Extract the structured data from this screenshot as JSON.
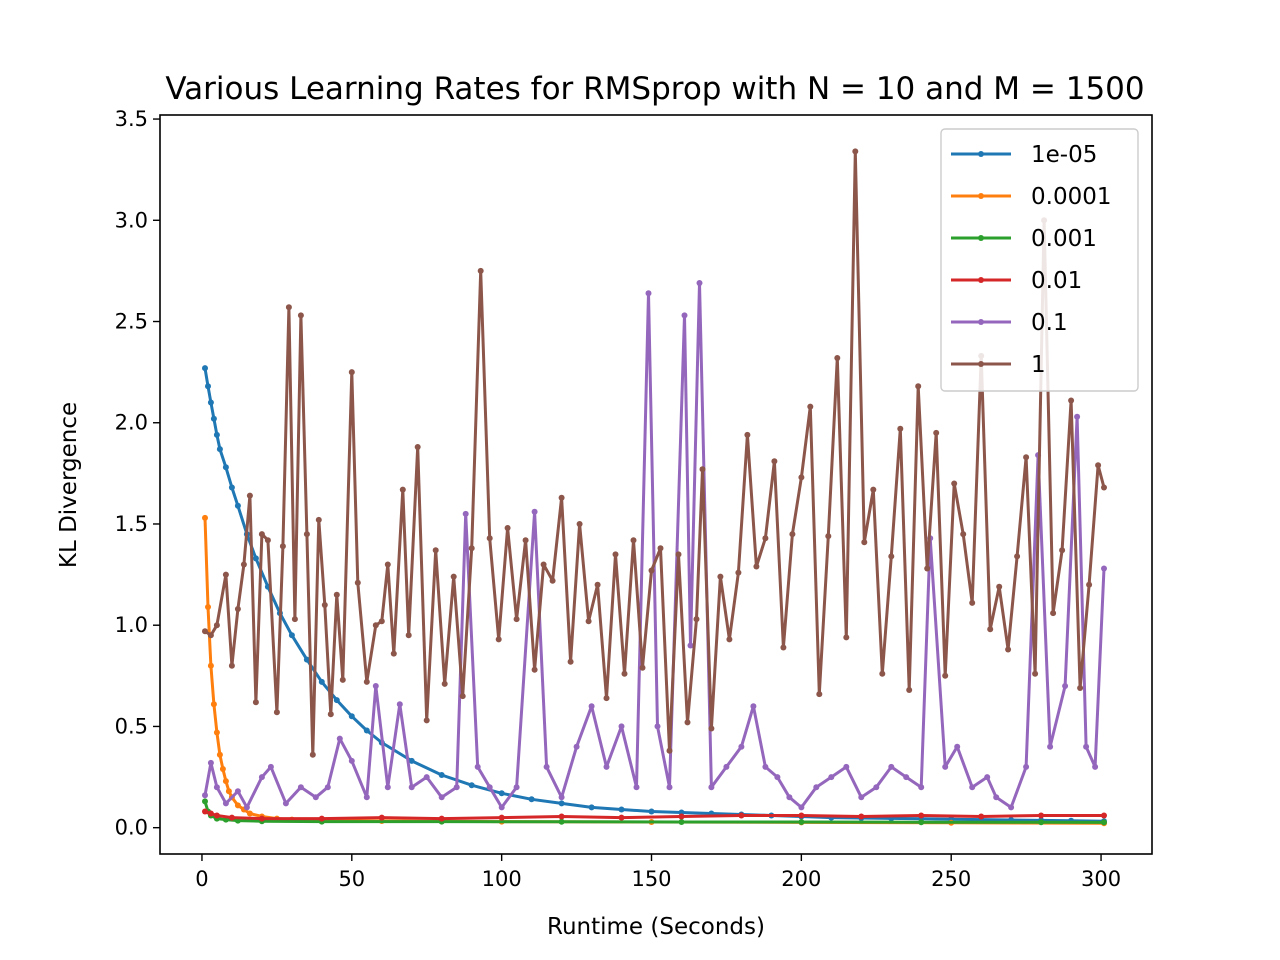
{
  "chart_data": {
    "type": "line",
    "title": "Various Learning Rates for RMSprop with N = 10 and M = 1500",
    "xlabel": "Runtime (Seconds)",
    "ylabel": "KL Divergence",
    "xlim": [
      -14,
      317
    ],
    "ylim": [
      -0.13,
      3.52
    ],
    "xticks": [
      0,
      50,
      100,
      150,
      200,
      250,
      300
    ],
    "xtick_labels": [
      "0",
      "50",
      "100",
      "150",
      "200",
      "250",
      "300"
    ],
    "yticks": [
      0.0,
      0.5,
      1.0,
      1.5,
      2.0,
      2.5,
      3.0,
      3.5
    ],
    "ytick_labels": [
      "0.0",
      "0.5",
      "1.0",
      "1.5",
      "2.0",
      "2.5",
      "3.0",
      "3.5"
    ],
    "grid": false,
    "legend_position": "top-right",
    "x_range": [
      1,
      301
    ],
    "series": [
      {
        "name": "1e-05",
        "color": "#1f77b4",
        "x": [
          1,
          2,
          3,
          4,
          5,
          6,
          8,
          10,
          12,
          15,
          18,
          22,
          26,
          30,
          35,
          40,
          45,
          50,
          55,
          60,
          70,
          80,
          90,
          100,
          110,
          120,
          130,
          140,
          150,
          160,
          170,
          180,
          190,
          200,
          210,
          220,
          230,
          240,
          250,
          260,
          270,
          280,
          290,
          301
        ],
        "values": [
          2.27,
          2.18,
          2.1,
          2.02,
          1.94,
          1.87,
          1.78,
          1.68,
          1.59,
          1.45,
          1.33,
          1.19,
          1.06,
          0.95,
          0.83,
          0.72,
          0.63,
          0.55,
          0.48,
          0.42,
          0.33,
          0.26,
          0.21,
          0.17,
          0.14,
          0.12,
          0.1,
          0.09,
          0.08,
          0.075,
          0.07,
          0.065,
          0.06,
          0.055,
          0.05,
          0.048,
          0.046,
          0.044,
          0.042,
          0.04,
          0.038,
          0.036,
          0.034,
          0.032
        ]
      },
      {
        "name": "0.0001",
        "color": "#ff7f0e",
        "x": [
          1,
          2,
          3,
          4,
          5,
          6,
          7,
          8,
          9,
          10,
          12,
          14,
          16,
          20,
          25,
          30,
          40,
          60,
          100,
          150,
          200,
          250,
          301
        ],
        "values": [
          1.53,
          1.09,
          0.8,
          0.61,
          0.47,
          0.36,
          0.29,
          0.23,
          0.18,
          0.15,
          0.11,
          0.09,
          0.07,
          0.055,
          0.045,
          0.04,
          0.035,
          0.033,
          0.03,
          0.028,
          0.026,
          0.024,
          0.022
        ]
      },
      {
        "name": "0.001",
        "color": "#2ca02c",
        "x": [
          1,
          2,
          3,
          5,
          8,
          12,
          20,
          40,
          80,
          120,
          160,
          200,
          240,
          280,
          301
        ],
        "values": [
          0.13,
          0.08,
          0.06,
          0.045,
          0.04,
          0.035,
          0.032,
          0.03,
          0.03,
          0.029,
          0.028,
          0.028,
          0.027,
          0.027,
          0.026
        ]
      },
      {
        "name": "0.01",
        "color": "#d62728",
        "x": [
          1,
          3,
          5,
          10,
          20,
          40,
          60,
          80,
          100,
          120,
          140,
          160,
          180,
          200,
          220,
          240,
          260,
          280,
          301
        ],
        "values": [
          0.08,
          0.07,
          0.06,
          0.05,
          0.045,
          0.045,
          0.05,
          0.045,
          0.05,
          0.055,
          0.05,
          0.055,
          0.06,
          0.06,
          0.055,
          0.06,
          0.055,
          0.06,
          0.06
        ]
      },
      {
        "name": "0.1",
        "color": "#9467bd",
        "x": [
          1,
          3,
          5,
          8,
          12,
          15,
          20,
          23,
          28,
          33,
          38,
          42,
          46,
          50,
          55,
          58,
          62,
          66,
          70,
          75,
          80,
          85,
          88,
          92,
          96,
          100,
          105,
          111,
          115,
          120,
          125,
          130,
          135,
          140,
          145,
          149,
          152,
          156,
          161,
          163,
          166,
          170,
          175,
          180,
          184,
          188,
          192,
          196,
          200,
          205,
          210,
          215,
          220,
          225,
          230,
          235,
          240,
          243,
          248,
          252,
          257,
          262,
          265,
          270,
          275,
          279,
          283,
          288,
          292,
          295,
          298,
          301
        ],
        "values": [
          0.16,
          0.32,
          0.2,
          0.12,
          0.18,
          0.1,
          0.25,
          0.3,
          0.12,
          0.2,
          0.15,
          0.2,
          0.44,
          0.33,
          0.15,
          0.7,
          0.2,
          0.61,
          0.2,
          0.25,
          0.15,
          0.2,
          1.55,
          0.3,
          0.2,
          0.1,
          0.2,
          1.56,
          0.3,
          0.15,
          0.4,
          0.6,
          0.3,
          0.5,
          0.2,
          2.64,
          0.5,
          0.2,
          2.53,
          0.9,
          2.69,
          0.2,
          0.3,
          0.4,
          0.6,
          0.3,
          0.25,
          0.15,
          0.1,
          0.2,
          0.25,
          0.3,
          0.15,
          0.2,
          0.3,
          0.25,
          0.2,
          1.43,
          0.3,
          0.4,
          0.2,
          0.25,
          0.15,
          0.1,
          0.3,
          1.84,
          0.4,
          0.7,
          2.03,
          0.4,
          0.3,
          1.28
        ]
      },
      {
        "name": "1",
        "color": "#8c564b",
        "x": [
          1,
          3,
          5,
          8,
          10,
          12,
          14,
          16,
          18,
          20,
          22,
          25,
          27,
          29,
          31,
          33,
          35,
          37,
          39,
          41,
          43,
          45,
          47,
          50,
          52,
          55,
          58,
          60,
          62,
          64,
          67,
          69,
          72,
          75,
          78,
          81,
          84,
          87,
          90,
          93,
          96,
          99,
          102,
          105,
          108,
          111,
          114,
          117,
          120,
          123,
          126,
          129,
          132,
          135,
          138,
          141,
          144,
          147,
          150,
          153,
          156,
          159,
          162,
          165,
          167,
          170,
          173,
          176,
          179,
          182,
          185,
          188,
          191,
          194,
          197,
          200,
          203,
          206,
          209,
          212,
          215,
          218,
          221,
          224,
          227,
          230,
          233,
          236,
          239,
          242,
          245,
          248,
          251,
          254,
          257,
          260,
          263,
          266,
          269,
          272,
          275,
          278,
          281,
          284,
          287,
          290,
          293,
          296,
          299,
          301
        ],
        "values": [
          0.97,
          0.95,
          1.0,
          1.25,
          0.8,
          1.08,
          1.3,
          1.64,
          0.62,
          1.45,
          1.42,
          0.57,
          1.39,
          2.57,
          1.03,
          2.53,
          1.45,
          0.36,
          1.52,
          1.1,
          0.56,
          1.15,
          0.73,
          2.25,
          1.21,
          0.72,
          1.0,
          1.02,
          1.3,
          0.86,
          1.67,
          0.95,
          1.88,
          0.53,
          1.37,
          0.71,
          1.24,
          0.65,
          1.38,
          2.75,
          1.43,
          0.93,
          1.48,
          1.03,
          1.42,
          0.78,
          1.3,
          1.22,
          1.63,
          0.82,
          1.5,
          1.02,
          1.2,
          0.64,
          1.35,
          0.76,
          1.42,
          0.79,
          1.27,
          1.38,
          0.38,
          1.35,
          0.52,
          1.03,
          1.77,
          0.49,
          1.24,
          0.93,
          1.26,
          1.94,
          1.29,
          1.43,
          1.81,
          0.89,
          1.45,
          1.73,
          2.08,
          0.66,
          1.44,
          2.32,
          0.94,
          3.34,
          1.41,
          1.67,
          0.76,
          1.34,
          1.97,
          0.68,
          2.18,
          1.28,
          1.95,
          0.75,
          1.7,
          1.45,
          1.11,
          2.33,
          0.98,
          1.19,
          0.88,
          1.34,
          1.83,
          0.76,
          3.0,
          1.06,
          1.37,
          2.11,
          0.69,
          1.2,
          1.79,
          1.68
        ]
      }
    ]
  }
}
